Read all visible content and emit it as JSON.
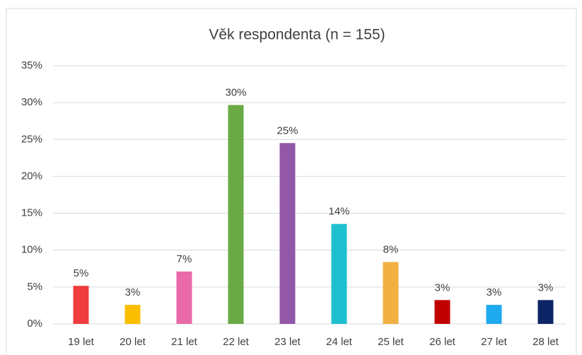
{
  "chart_data": {
    "type": "bar",
    "title": "Věk respondenta (n = 155)",
    "categories": [
      "19 let",
      "20 let",
      "21 let",
      "22 let",
      "23 let",
      "24 let",
      "25 let",
      "26 let",
      "27 let",
      "28 let"
    ],
    "values": [
      5.16,
      2.58,
      7.1,
      29.68,
      24.52,
      13.55,
      8.39,
      3.23,
      2.58,
      3.23
    ],
    "value_labels": [
      "5%",
      "3%",
      "7%",
      "30%",
      "25%",
      "14%",
      "8%",
      "3%",
      "3%",
      "3%"
    ],
    "colors": [
      "#f03c3c",
      "#fbbf00",
      "#e96aa8",
      "#6aaa45",
      "#9257a7",
      "#1ebfcf",
      "#f2b042",
      "#c00000",
      "#1fa9ef",
      "#0d2566"
    ],
    "ylim": [
      0,
      35
    ],
    "yticks": [
      {
        "value": 0,
        "label": "0%"
      },
      {
        "value": 5,
        "label": "5%"
      },
      {
        "value": 10,
        "label": "10%"
      },
      {
        "value": 15,
        "label": "15%"
      },
      {
        "value": 20,
        "label": "20%"
      },
      {
        "value": 25,
        "label": "25%"
      },
      {
        "value": 30,
        "label": "30%"
      },
      {
        "value": 35,
        "label": "35%"
      }
    ],
    "grid": true
  }
}
